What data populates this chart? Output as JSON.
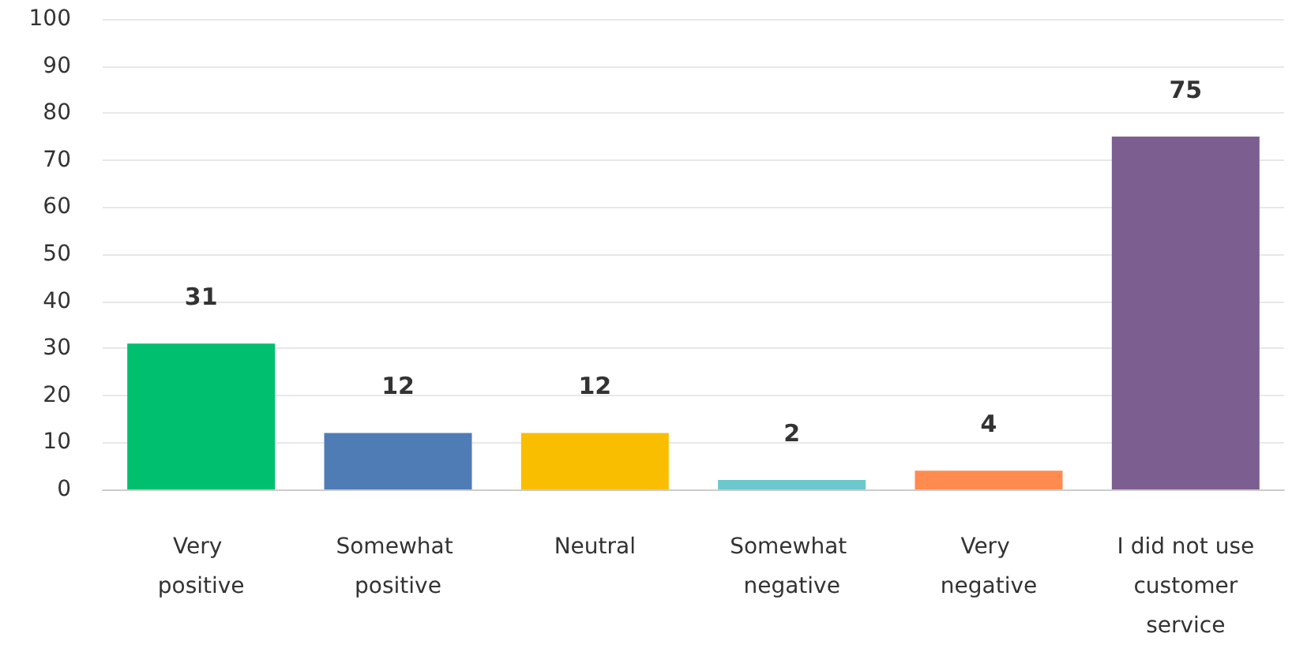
{
  "chart_data": {
    "type": "bar",
    "categories": [
      "Very positive",
      "Somewhat positive",
      "Neutral",
      "Somewhat negative",
      "Very negative",
      "I did not use customer service"
    ],
    "values": [
      31,
      12,
      12,
      2,
      4,
      75
    ],
    "colors": [
      "#00bf6f",
      "#507cb6",
      "#f9be00",
      "#6bc8cd",
      "#ff8b4f",
      "#7d5e90"
    ],
    "ylim": [
      0,
      100
    ],
    "yticks": [
      0,
      10,
      20,
      30,
      40,
      50,
      60,
      70,
      80,
      90,
      100
    ],
    "grid": "y",
    "data_labels": true
  }
}
